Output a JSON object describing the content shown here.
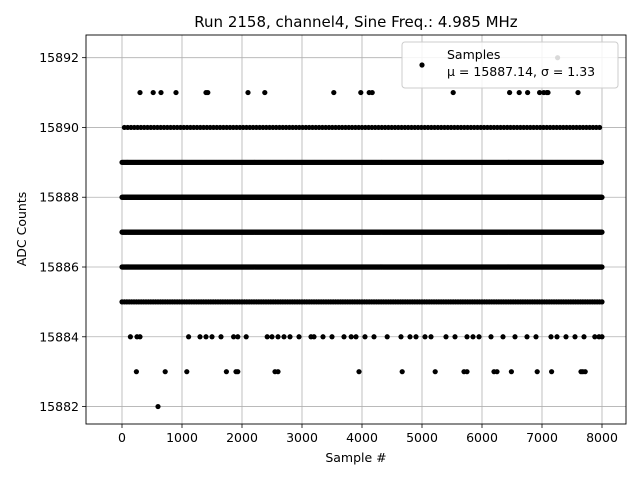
{
  "chart_data": {
    "type": "scatter",
    "title": "Run 2158, channel4, Sine Freq.: 4.985 MHz",
    "xlabel": "Sample #",
    "ylabel": "ADC Counts",
    "xlim": [
      -600,
      8400
    ],
    "ylim": [
      15881.5,
      15892.65
    ],
    "xticks": [
      0,
      1000,
      2000,
      3000,
      4000,
      5000,
      6000,
      7000,
      8000
    ],
    "xtick_labels": [
      "0",
      "1000",
      "2000",
      "3000",
      "4000",
      "5000",
      "6000",
      "7000",
      "8000"
    ],
    "yticks": [
      15882,
      15884,
      15886,
      15888,
      15890,
      15892
    ],
    "ytick_labels": [
      "15882",
      "15884",
      "15886",
      "15888",
      "15890",
      "15892"
    ],
    "grid": true,
    "marker_color": "#000000",
    "legend": {
      "location": "upper right",
      "label_line1": "Samples",
      "label_line2": "μ = 15887.14, σ = 1.33"
    },
    "series": [
      {
        "name": "Samples",
        "points": [
          [
            600,
            15882
          ],
          [
            240,
            15883
          ],
          [
            720,
            15883
          ],
          [
            1080,
            15883
          ],
          [
            1740,
            15883
          ],
          [
            1900,
            15883
          ],
          [
            1930,
            15883
          ],
          [
            2550,
            15883
          ],
          [
            2600,
            15883
          ],
          [
            3950,
            15883
          ],
          [
            4670,
            15883
          ],
          [
            5220,
            15883
          ],
          [
            5700,
            15883
          ],
          [
            5750,
            15883
          ],
          [
            6200,
            15883
          ],
          [
            6250,
            15883
          ],
          [
            6490,
            15883
          ],
          [
            6920,
            15883
          ],
          [
            7160,
            15883
          ],
          [
            7650,
            15883
          ],
          [
            7680,
            15883
          ],
          [
            7720,
            15883
          ],
          [
            140,
            15884
          ],
          [
            250,
            15884
          ],
          [
            300,
            15884
          ],
          [
            1110,
            15884
          ],
          [
            1300,
            15884
          ],
          [
            1400,
            15884
          ],
          [
            1500,
            15884
          ],
          [
            1650,
            15884
          ],
          [
            1860,
            15884
          ],
          [
            1930,
            15884
          ],
          [
            2070,
            15884
          ],
          [
            2420,
            15884
          ],
          [
            2500,
            15884
          ],
          [
            2600,
            15884
          ],
          [
            2700,
            15884
          ],
          [
            2800,
            15884
          ],
          [
            2950,
            15884
          ],
          [
            3150,
            15884
          ],
          [
            3200,
            15884
          ],
          [
            3350,
            15884
          ],
          [
            3500,
            15884
          ],
          [
            3700,
            15884
          ],
          [
            3820,
            15884
          ],
          [
            3900,
            15884
          ],
          [
            4050,
            15884
          ],
          [
            4200,
            15884
          ],
          [
            4420,
            15884
          ],
          [
            4650,
            15884
          ],
          [
            4800,
            15884
          ],
          [
            4900,
            15884
          ],
          [
            5050,
            15884
          ],
          [
            5150,
            15884
          ],
          [
            5400,
            15884
          ],
          [
            5550,
            15884
          ],
          [
            5750,
            15884
          ],
          [
            5850,
            15884
          ],
          [
            5950,
            15884
          ],
          [
            6150,
            15884
          ],
          [
            6350,
            15884
          ],
          [
            6550,
            15884
          ],
          [
            6750,
            15884
          ],
          [
            6900,
            15884
          ],
          [
            7150,
            15884
          ],
          [
            7250,
            15884
          ],
          [
            7400,
            15884
          ],
          [
            7550,
            15884
          ],
          [
            7700,
            15884
          ],
          [
            7880,
            15884
          ],
          [
            7950,
            15884
          ],
          [
            8000,
            15884
          ],
          [
            300,
            15891
          ],
          [
            520,
            15891
          ],
          [
            650,
            15891
          ],
          [
            900,
            15891
          ],
          [
            1400,
            15891
          ],
          [
            1430,
            15891
          ],
          [
            2100,
            15891
          ],
          [
            2380,
            15891
          ],
          [
            3530,
            15891
          ],
          [
            3980,
            15891
          ],
          [
            4120,
            15891
          ],
          [
            4170,
            15891
          ],
          [
            5520,
            15891
          ],
          [
            6460,
            15891
          ],
          [
            6620,
            15891
          ],
          [
            6760,
            15891
          ],
          [
            6960,
            15891
          ],
          [
            7030,
            15891
          ],
          [
            7080,
            15891
          ],
          [
            7100,
            15891
          ],
          [
            7600,
            15891
          ],
          [
            7260,
            15892
          ]
        ],
        "dense_bands": [
          {
            "y": 15885,
            "x_start": 0,
            "x_end": 8000,
            "step": 40
          },
          {
            "y": 15886,
            "x_start": 0,
            "x_end": 8000,
            "step": 8
          },
          {
            "y": 15887,
            "x_start": 0,
            "x_end": 8000,
            "step": 8
          },
          {
            "y": 15888,
            "x_start": 0,
            "x_end": 8000,
            "step": 8
          },
          {
            "y": 15889,
            "x_start": 0,
            "x_end": 8000,
            "step": 18
          },
          {
            "y": 15890,
            "x_start": 40,
            "x_end": 7960,
            "step": 55
          }
        ]
      }
    ]
  }
}
